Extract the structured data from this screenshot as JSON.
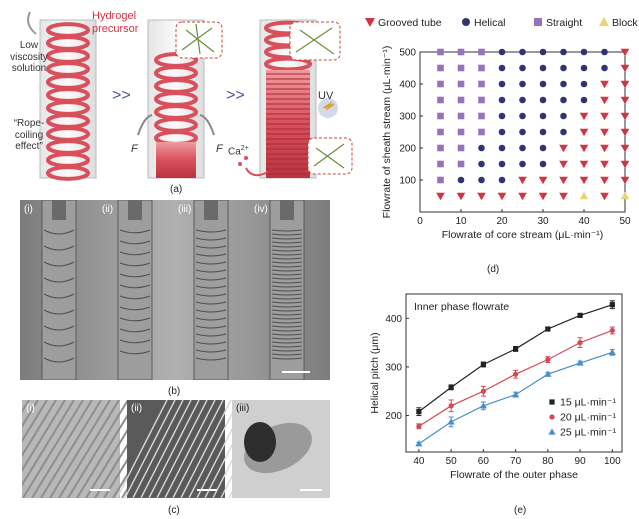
{
  "panel_a": {
    "caption": "(a)",
    "left_label_lines": [
      "Low",
      "viscosity",
      "solution"
    ],
    "rope_label_lines": [
      "“Rope-",
      "coiling",
      "effect”"
    ],
    "precursor_lines": [
      "Hydrogel",
      "precursor"
    ],
    "force_label": "F",
    "uv_label": "UV",
    "ca_label": "Ca",
    "ca_sup": "2+"
  },
  "panel_b": {
    "caption": "(b)",
    "subpanels": [
      "(i)",
      "(ii)",
      "(iii)",
      "(iv)"
    ]
  },
  "panel_c": {
    "caption": "(c)",
    "subpanels": [
      "(i)",
      "(ii)",
      "(iii)"
    ]
  },
  "panel_d": {
    "caption": "(d)"
  },
  "panel_e": {
    "caption": "(e)"
  },
  "chart_data": [
    {
      "id": "d",
      "type": "scatter",
      "xlabel": "Flowrate of core stream (μL·min⁻¹)",
      "ylabel": "Flowrate of sheath stream (μL·min⁻¹)",
      "xlim": [
        0,
        50
      ],
      "ylim": [
        0,
        500
      ],
      "xticks": [
        0,
        10,
        20,
        30,
        40,
        50
      ],
      "yticks": [
        100,
        200,
        300,
        400,
        500
      ],
      "x": [
        5,
        10,
        15,
        20,
        25,
        30,
        35,
        40,
        45,
        50
      ],
      "y": [
        50,
        100,
        150,
        200,
        250,
        300,
        350,
        400,
        450,
        500
      ],
      "legend": [
        {
          "name": "Grooved tube",
          "marker": "triangle-down",
          "color": "#d6333f"
        },
        {
          "name": "Helical",
          "marker": "circle",
          "color": "#2e3570"
        },
        {
          "name": "Straight",
          "marker": "square",
          "color": "#9b72b5"
        },
        {
          "name": "Block",
          "marker": "triangle-up",
          "color": "#ead373"
        }
      ],
      "grid_rows_top_to_bottom": [
        "SSSHHHHHHG",
        "SSSHHHHHHG",
        "SSSHHHHHGG",
        "SSSHHHHHGG",
        "SSSHHHHGGG",
        "SSSHHHHGGG",
        "SSHHHHGGGG",
        "SSHHHHGGGG",
        "SHHHGGGGGG",
        "GGGGGGGBGB"
      ]
    },
    {
      "id": "e",
      "type": "line",
      "title": "Inner phase flowrate",
      "xlabel": "Flowrate of the outer phase",
      "ylabel": "Helical pitch (μm)",
      "x": [
        40,
        50,
        60,
        70,
        80,
        90,
        100
      ],
      "xlim": [
        36,
        103
      ],
      "ylim": [
        125,
        450
      ],
      "xticks": [
        40,
        50,
        60,
        70,
        80,
        90,
        100
      ],
      "yticks": [
        200,
        300,
        400
      ],
      "series": [
        {
          "name": "15 μL·min⁻¹",
          "marker": "square",
          "color": "#222222",
          "values": [
            208,
            258,
            305,
            337,
            378,
            406,
            428
          ],
          "errors": [
            8,
            5,
            5,
            5,
            3,
            4,
            8
          ]
        },
        {
          "name": "20 μL·min⁻¹",
          "marker": "circle",
          "color": "#d24a55",
          "values": [
            178,
            220,
            250,
            285,
            315,
            350,
            375
          ],
          "errors": [
            5,
            12,
            10,
            8,
            6,
            10,
            7
          ]
        },
        {
          "name": "25 μL·min⁻¹",
          "marker": "triangle-up",
          "color": "#4d8ec4",
          "values": [
            142,
            187,
            220,
            243,
            285,
            308,
            330
          ],
          "errors": [
            3,
            10,
            8,
            5,
            4,
            4,
            6
          ]
        }
      ]
    }
  ]
}
